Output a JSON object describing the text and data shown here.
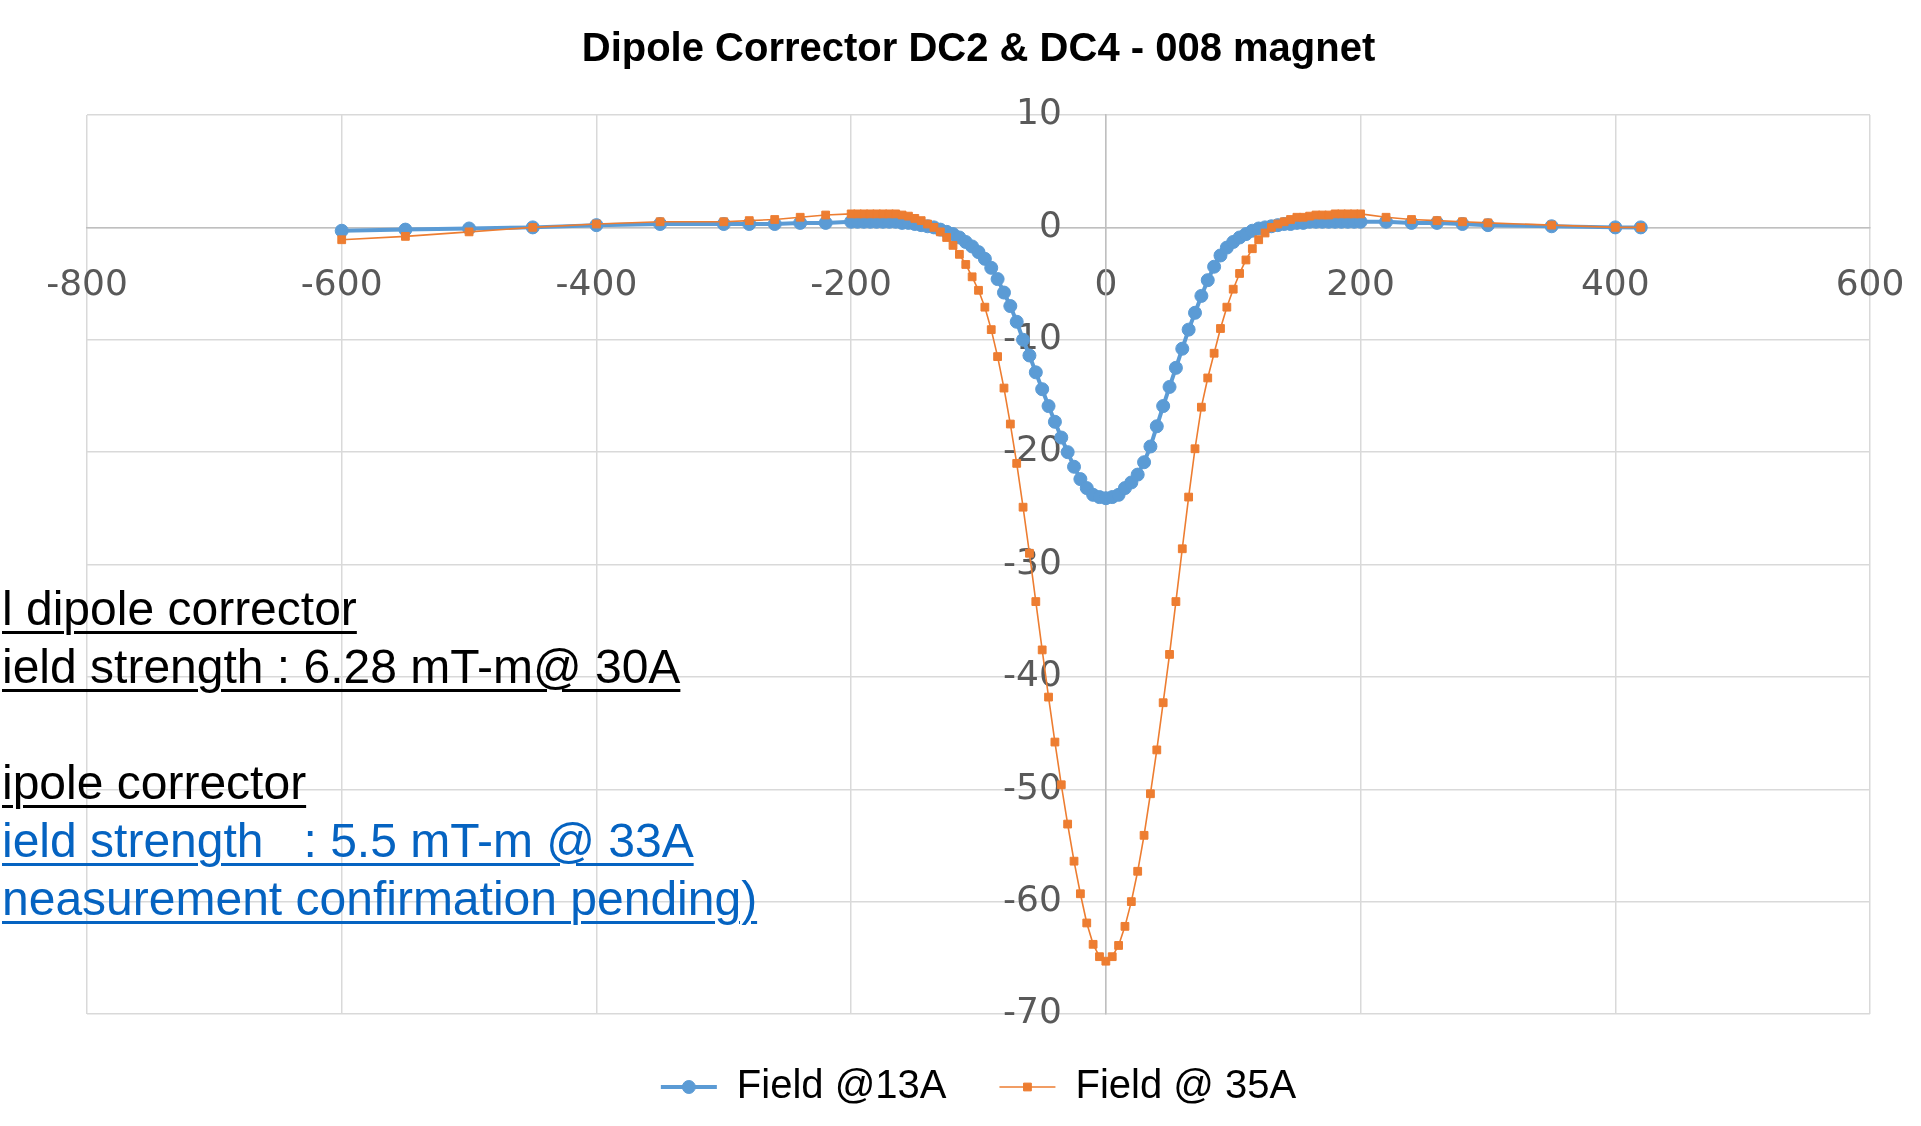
{
  "chart_data": {
    "type": "line",
    "title": "Dipole Corrector DC2 & DC4 - 008 magnet",
    "x": [
      -600,
      -550,
      -500,
      -450,
      -400,
      -350,
      -300,
      -280,
      -260,
      -240,
      -220,
      -200,
      -195,
      -190,
      -185,
      -180,
      -175,
      -170,
      -165,
      -160,
      -155,
      -150,
      -145,
      -140,
      -135,
      -130,
      -125,
      -120,
      -115,
      -110,
      -105,
      -100,
      -95,
      -90,
      -85,
      -80,
      -75,
      -70,
      -65,
      -60,
      -55,
      -50,
      -45,
      -40,
      -35,
      -30,
      -25,
      -20,
      -15,
      -10,
      -5,
      0,
      5,
      10,
      15,
      20,
      25,
      30,
      35,
      40,
      45,
      50,
      55,
      60,
      65,
      70,
      75,
      80,
      85,
      90,
      95,
      100,
      105,
      110,
      115,
      120,
      125,
      130,
      135,
      140,
      145,
      150,
      155,
      160,
      165,
      170,
      175,
      180,
      185,
      190,
      195,
      200,
      220,
      240,
      260,
      280,
      300,
      350,
      400,
      420
    ],
    "series": [
      {
        "name": "Field @13A",
        "color": "#5b9bd5",
        "marker": "circle",
        "values": [
          -0.3,
          -0.2,
          -0.1,
          0,
          0.2,
          0.3,
          0.3,
          0.3,
          0.3,
          0.4,
          0.4,
          0.5,
          0.5,
          0.5,
          0.5,
          0.5,
          0.5,
          0.5,
          0.5,
          0.4,
          0.4,
          0.3,
          0.2,
          0.1,
          0,
          -0.2,
          -0.4,
          -0.6,
          -0.9,
          -1.3,
          -1.7,
          -2.2,
          -2.8,
          -3.6,
          -4.6,
          -5.8,
          -7.0,
          -8.4,
          -10.0,
          -11.4,
          -12.9,
          -14.4,
          -15.9,
          -17.3,
          -18.7,
          -20.0,
          -21.3,
          -22.4,
          -23.2,
          -23.8,
          -24.0,
          -24.1,
          -24.0,
          -23.8,
          -23.2,
          -22.7,
          -22.0,
          -20.9,
          -19.5,
          -17.7,
          -15.9,
          -14.2,
          -12.5,
          -10.8,
          -9.1,
          -7.6,
          -6.1,
          -4.7,
          -3.5,
          -2.5,
          -1.8,
          -1.3,
          -0.9,
          -0.6,
          -0.3,
          -0.1,
          0,
          0.1,
          0.2,
          0.3,
          0.3,
          0.4,
          0.4,
          0.5,
          0.5,
          0.5,
          0.5,
          0.5,
          0.5,
          0.5,
          0.5,
          0.5,
          0.5,
          0.4,
          0.4,
          0.3,
          0.2,
          0.1,
          0,
          0
        ]
      },
      {
        "name": "Field @ 35A",
        "color": "#ed7d31",
        "marker": "square",
        "values": [
          -1.1,
          -0.8,
          -0.4,
          0,
          0.3,
          0.5,
          0.5,
          0.6,
          0.7,
          0.9,
          1.1,
          1.2,
          1.2,
          1.2,
          1.2,
          1.2,
          1.2,
          1.2,
          1.2,
          1.1,
          1.0,
          0.8,
          0.6,
          0.3,
          0,
          -0.4,
          -0.9,
          -1.6,
          -2.4,
          -3.3,
          -4.4,
          -5.6,
          -7.1,
          -9.1,
          -11.5,
          -14.3,
          -17.5,
          -21.0,
          -24.9,
          -29.0,
          -33.3,
          -37.6,
          -41.8,
          -45.8,
          -49.6,
          -53.1,
          -56.4,
          -59.3,
          -61.9,
          -63.8,
          -64.9,
          -65.3,
          -64.9,
          -63.9,
          -62.2,
          -60.0,
          -57.3,
          -54.1,
          -50.4,
          -46.5,
          -42.3,
          -38.0,
          -33.3,
          -28.6,
          -24.0,
          -19.7,
          -16.0,
          -13.4,
          -11.2,
          -9.0,
          -7.1,
          -5.5,
          -4.1,
          -2.9,
          -1.9,
          -1.1,
          -0.5,
          0,
          0.3,
          0.5,
          0.7,
          0.9,
          0.9,
          1.0,
          1.1,
          1.1,
          1.1,
          1.2,
          1.2,
          1.2,
          1.2,
          1.2,
          0.9,
          0.7,
          0.6,
          0.5,
          0.4,
          0.2,
          0,
          0
        ]
      }
    ],
    "xlim": [
      -800,
      600
    ],
    "xticks": [
      -800,
      -600,
      -400,
      -200,
      0,
      200,
      400,
      600
    ],
    "ylim": [
      -70,
      10
    ],
    "yticks": [
      -70,
      -60,
      -50,
      -40,
      -30,
      -20,
      -10,
      0,
      10
    ],
    "grid": true,
    "legend": "bottom",
    "line_style": "solid",
    "annotations": [
      "l dipole corrector",
      "ield strength : 6.28 mT-m@ 30A",
      "ipole corrector",
      "ield strength   : 5.5 mT-m @ 33A",
      "neasurement confirmation pending)"
    ]
  }
}
